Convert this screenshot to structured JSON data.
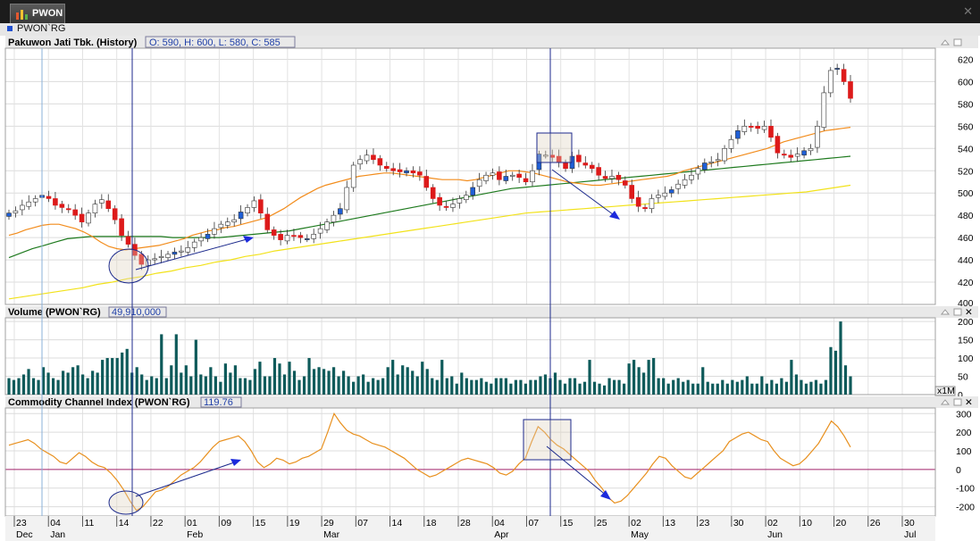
{
  "window": {
    "tab_label": "PWON",
    "tab_icon": "bar-chart-icon",
    "close_icon": "close-icon"
  },
  "toolbar": {
    "symbol": "PWON`RG"
  },
  "panels": {
    "price": {
      "title": "Pakuwon Jati Tbk. (History)",
      "ohlc": "O: 590,  H: 600,  L: 580,  C: 585"
    },
    "volume": {
      "title": "Volume (PWON`RG)",
      "value": "49,910,000",
      "multiplier": "x1M"
    },
    "cci": {
      "title": "Commodity Channel Index (PWON`RG)",
      "value": "119.76"
    }
  },
  "chart_data": [
    {
      "type": "candlestick",
      "ylim": [
        400,
        630
      ],
      "yticks": [
        "420",
        "440",
        "460",
        "480",
        "500",
        "520",
        "540",
        "560",
        "580",
        "600",
        "620"
      ],
      "ytick_partial": "400",
      "x_day_labels": [
        "23",
        "04",
        "11",
        "14",
        "22",
        "01",
        "09",
        "15",
        "19",
        "29",
        "07",
        "14",
        "18",
        "28",
        "04",
        "07",
        "15",
        "25",
        "02",
        "13",
        "23",
        "30",
        "02",
        "10",
        "20",
        "26",
        "30"
      ],
      "x_month_labels": [
        "Dec",
        "Jan",
        "Feb",
        "Mar",
        "Apr",
        "May",
        "Jun",
        "Jul"
      ],
      "up_color": "#1f5fd6",
      "down_color": "#dd1a1a",
      "ma_colors": {
        "short": "#f28c1c",
        "mid": "#1e7a1e",
        "long": "#f2e21a"
      },
      "close": [
        482,
        484,
        489,
        492,
        495,
        498,
        495,
        489,
        487,
        485,
        480,
        474,
        482,
        490,
        494,
        486,
        476,
        462,
        454,
        444,
        436,
        440,
        441,
        443,
        445,
        447,
        448,
        451,
        456,
        460,
        463,
        468,
        472,
        474,
        476,
        483,
        487,
        493,
        482,
        467,
        462,
        458,
        462,
        461,
        460,
        459,
        463,
        468,
        474,
        480,
        486,
        505,
        525,
        530,
        534,
        530,
        525,
        522,
        520,
        519,
        520,
        518,
        516,
        505,
        495,
        489,
        487,
        490,
        495,
        498,
        505,
        512,
        516,
        518,
        512,
        515,
        516,
        514,
        510,
        520,
        535,
        534,
        532,
        528,
        522,
        533,
        528,
        525,
        522,
        516,
        513,
        515,
        512,
        507,
        495,
        488,
        486,
        495,
        498,
        500,
        503,
        508,
        512,
        516,
        522,
        527,
        528,
        530,
        540,
        548,
        556,
        560,
        559,
        558,
        560,
        550,
        536,
        534,
        532,
        535,
        538,
        540,
        560,
        590,
        610,
        612,
        600,
        585
      ],
      "ma20": [
        462,
        464,
        467,
        469,
        471,
        472,
        472,
        470,
        468,
        465,
        461,
        456,
        452,
        450,
        449,
        450,
        451,
        452,
        453,
        455,
        457,
        459,
        462,
        464,
        466,
        467,
        469,
        470,
        472,
        474,
        476,
        478,
        482,
        486,
        491,
        496,
        500,
        504,
        507,
        509,
        511,
        513,
        515,
        516,
        517,
        518,
        518,
        517,
        516,
        515,
        514,
        513,
        512,
        512,
        512,
        511,
        512,
        514,
        516,
        518,
        520,
        520,
        519,
        518,
        516,
        514,
        512,
        510,
        509,
        508,
        507,
        507,
        508,
        509,
        510,
        511,
        512,
        513,
        514,
        515,
        517,
        520,
        522,
        524,
        526,
        528,
        530,
        532,
        534,
        536,
        538,
        540,
        543,
        546,
        548,
        550,
        552,
        554,
        556,
        557,
        558,
        559
      ],
      "ma50": [
        442,
        446,
        450,
        453,
        456,
        459,
        460,
        461,
        461,
        461,
        461,
        461,
        461,
        461,
        460,
        460,
        460,
        460,
        460,
        461,
        462,
        463,
        464,
        465,
        466,
        468,
        470,
        472,
        474,
        476,
        478,
        480,
        482,
        484,
        486,
        488,
        490,
        492,
        494,
        496,
        498,
        500,
        502,
        504,
        505,
        506,
        507,
        508,
        509,
        510,
        511,
        512,
        513,
        514,
        515,
        516,
        517,
        518,
        519,
        520,
        521,
        522,
        523,
        524,
        525,
        526,
        527,
        528,
        529,
        530,
        531,
        532,
        533
      ],
      "ma100": [
        405,
        407,
        409,
        411,
        413,
        415,
        418,
        420,
        423,
        425,
        428,
        430,
        433,
        435,
        438,
        440,
        443,
        445,
        448,
        450,
        452,
        454,
        456,
        458,
        460,
        462,
        464,
        466,
        468,
        470,
        472,
        474,
        476,
        478,
        480,
        482,
        483,
        484,
        485,
        486,
        487,
        488,
        489,
        490,
        491,
        492,
        493,
        494,
        495,
        496,
        497,
        498,
        499,
        500,
        501,
        503,
        505,
        507
      ]
    },
    {
      "type": "bar",
      "name": "Volume",
      "ylim": [
        0,
        210
      ],
      "yticks": [
        "0",
        "50",
        "100",
        "150",
        "200"
      ],
      "color": "#0e5a5a",
      "values": [
        45,
        40,
        45,
        55,
        70,
        45,
        40,
        75,
        60,
        45,
        40,
        65,
        60,
        75,
        80,
        55,
        45,
        65,
        60,
        95,
        100,
        100,
        100,
        115,
        125,
        60,
        75,
        55,
        40,
        50,
        45,
        165,
        45,
        80,
        165,
        60,
        80,
        50,
        150,
        55,
        50,
        75,
        50,
        35,
        85,
        60,
        80,
        45,
        45,
        40,
        70,
        90,
        50,
        50,
        100,
        85,
        55,
        90,
        65,
        40,
        50,
        100,
        70,
        75,
        70,
        65,
        75,
        50,
        65,
        50,
        35,
        50,
        55,
        35,
        45,
        40,
        45,
        75,
        95,
        55,
        80,
        75,
        65,
        50,
        90,
        70,
        45,
        40,
        95,
        45,
        50,
        30,
        60,
        45,
        40,
        40,
        45,
        35,
        30,
        45,
        45,
        45,
        30,
        40,
        40,
        30,
        40,
        40,
        50,
        55,
        45,
        60,
        40,
        30,
        45,
        45,
        30,
        35,
        95,
        35,
        30,
        25,
        45,
        40,
        40,
        30,
        85,
        95,
        75,
        60,
        95,
        100,
        45,
        45,
        30,
        40,
        45,
        35,
        40,
        30,
        30,
        75,
        35,
        30,
        30,
        40,
        30,
        40,
        35,
        40,
        50,
        30,
        30,
        50,
        30,
        40,
        30,
        45,
        35,
        95,
        55,
        40,
        30,
        35,
        40,
        30,
        40,
        130,
        120,
        200,
        80,
        50
      ]
    },
    {
      "type": "line",
      "name": "CCI",
      "ylim": [
        -250,
        330
      ],
      "yticks": [
        "-200",
        "-100",
        "0",
        "100",
        "200",
        "300"
      ],
      "color": "#e8901e",
      "zero_line_color": "#a0206a",
      "values": [
        130,
        140,
        150,
        160,
        140,
        110,
        90,
        70,
        40,
        30,
        60,
        90,
        70,
        40,
        20,
        10,
        -20,
        -60,
        -110,
        -170,
        -220,
        -200,
        -160,
        -120,
        -110,
        -90,
        -60,
        -30,
        -10,
        10,
        40,
        80,
        120,
        150,
        160,
        170,
        180,
        150,
        100,
        40,
        10,
        30,
        60,
        50,
        30,
        40,
        60,
        70,
        90,
        110,
        200,
        300,
        250,
        210,
        190,
        180,
        160,
        140,
        130,
        120,
        100,
        80,
        60,
        30,
        0,
        -20,
        -40,
        -30,
        -10,
        10,
        30,
        50,
        60,
        50,
        40,
        30,
        10,
        -20,
        -30,
        -10,
        30,
        60,
        150,
        230,
        200,
        160,
        130,
        110,
        80,
        50,
        20,
        -10,
        -60,
        -100,
        -150,
        -180,
        -170,
        -140,
        -100,
        -60,
        -20,
        30,
        70,
        60,
        20,
        -10,
        -40,
        -50,
        -20,
        10,
        40,
        70,
        100,
        150,
        170,
        190,
        200,
        180,
        160,
        150,
        100,
        60,
        40,
        20,
        30,
        60,
        100,
        140,
        200,
        260,
        230,
        180,
        120
      ]
    }
  ]
}
